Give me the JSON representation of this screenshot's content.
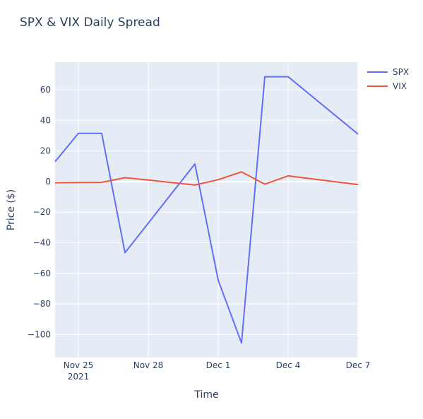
{
  "chart_data": {
    "type": "line",
    "title": "SPX & VIX Daily Spread",
    "xlabel": "Time",
    "ylabel": "Price ($)",
    "x": [
      "2021-11-24",
      "2021-11-25",
      "2021-11-26",
      "2021-11-27",
      "2021-11-28",
      "2021-11-29",
      "2021-11-30",
      "2021-12-01",
      "2021-12-02",
      "2021-12-03",
      "2021-12-04",
      "2021-12-05",
      "2021-12-06",
      "2021-12-07"
    ],
    "xlim": [
      "2021-11-24",
      "2021-12-07"
    ],
    "ylim": [
      -115,
      78
    ],
    "x_ticks": [
      {
        "date": "2021-11-25",
        "label": "Nov 25",
        "sublabel": "2021"
      },
      {
        "date": "2021-11-28",
        "label": "Nov 28",
        "sublabel": ""
      },
      {
        "date": "2021-12-01",
        "label": "Dec 1",
        "sublabel": ""
      },
      {
        "date": "2021-12-04",
        "label": "Dec 4",
        "sublabel": ""
      },
      {
        "date": "2021-12-07",
        "label": "Dec 7",
        "sublabel": ""
      }
    ],
    "y_ticks": [
      60,
      40,
      20,
      0,
      -20,
      -40,
      -60,
      -80,
      -100
    ],
    "y_tick_labels": [
      "60",
      "40",
      "20",
      "0",
      "−20",
      "−40",
      "−60",
      "−80",
      "−100"
    ],
    "grid": true,
    "legend_position": "top-right",
    "series": [
      {
        "name": "SPX",
        "color": "#636efa",
        "points": [
          [
            "2021-11-24",
            13
          ],
          [
            "2021-11-25",
            31.5
          ],
          [
            "2021-11-26",
            31.5
          ],
          [
            "2021-11-27",
            -46.5
          ],
          [
            "2021-11-30",
            11.5
          ],
          [
            "2021-12-01",
            -64.5
          ],
          [
            "2021-12-02",
            -105.5
          ],
          [
            "2021-12-03",
            68.5
          ],
          [
            "2021-12-04",
            68.5
          ],
          [
            "2021-12-07",
            31
          ]
        ]
      },
      {
        "name": "VIX",
        "color": "#ef553b",
        "points": [
          [
            "2021-11-24",
            -0.8
          ],
          [
            "2021-11-25",
            -0.6
          ],
          [
            "2021-11-26",
            -0.5
          ],
          [
            "2021-11-27",
            2.5
          ],
          [
            "2021-11-28",
            1
          ],
          [
            "2021-11-30",
            -2.3
          ],
          [
            "2021-12-01",
            1.2
          ],
          [
            "2021-12-02",
            6.3
          ],
          [
            "2021-12-03",
            -1.7
          ],
          [
            "2021-12-04",
            3.7
          ],
          [
            "2021-12-07",
            -2
          ]
        ]
      }
    ]
  }
}
